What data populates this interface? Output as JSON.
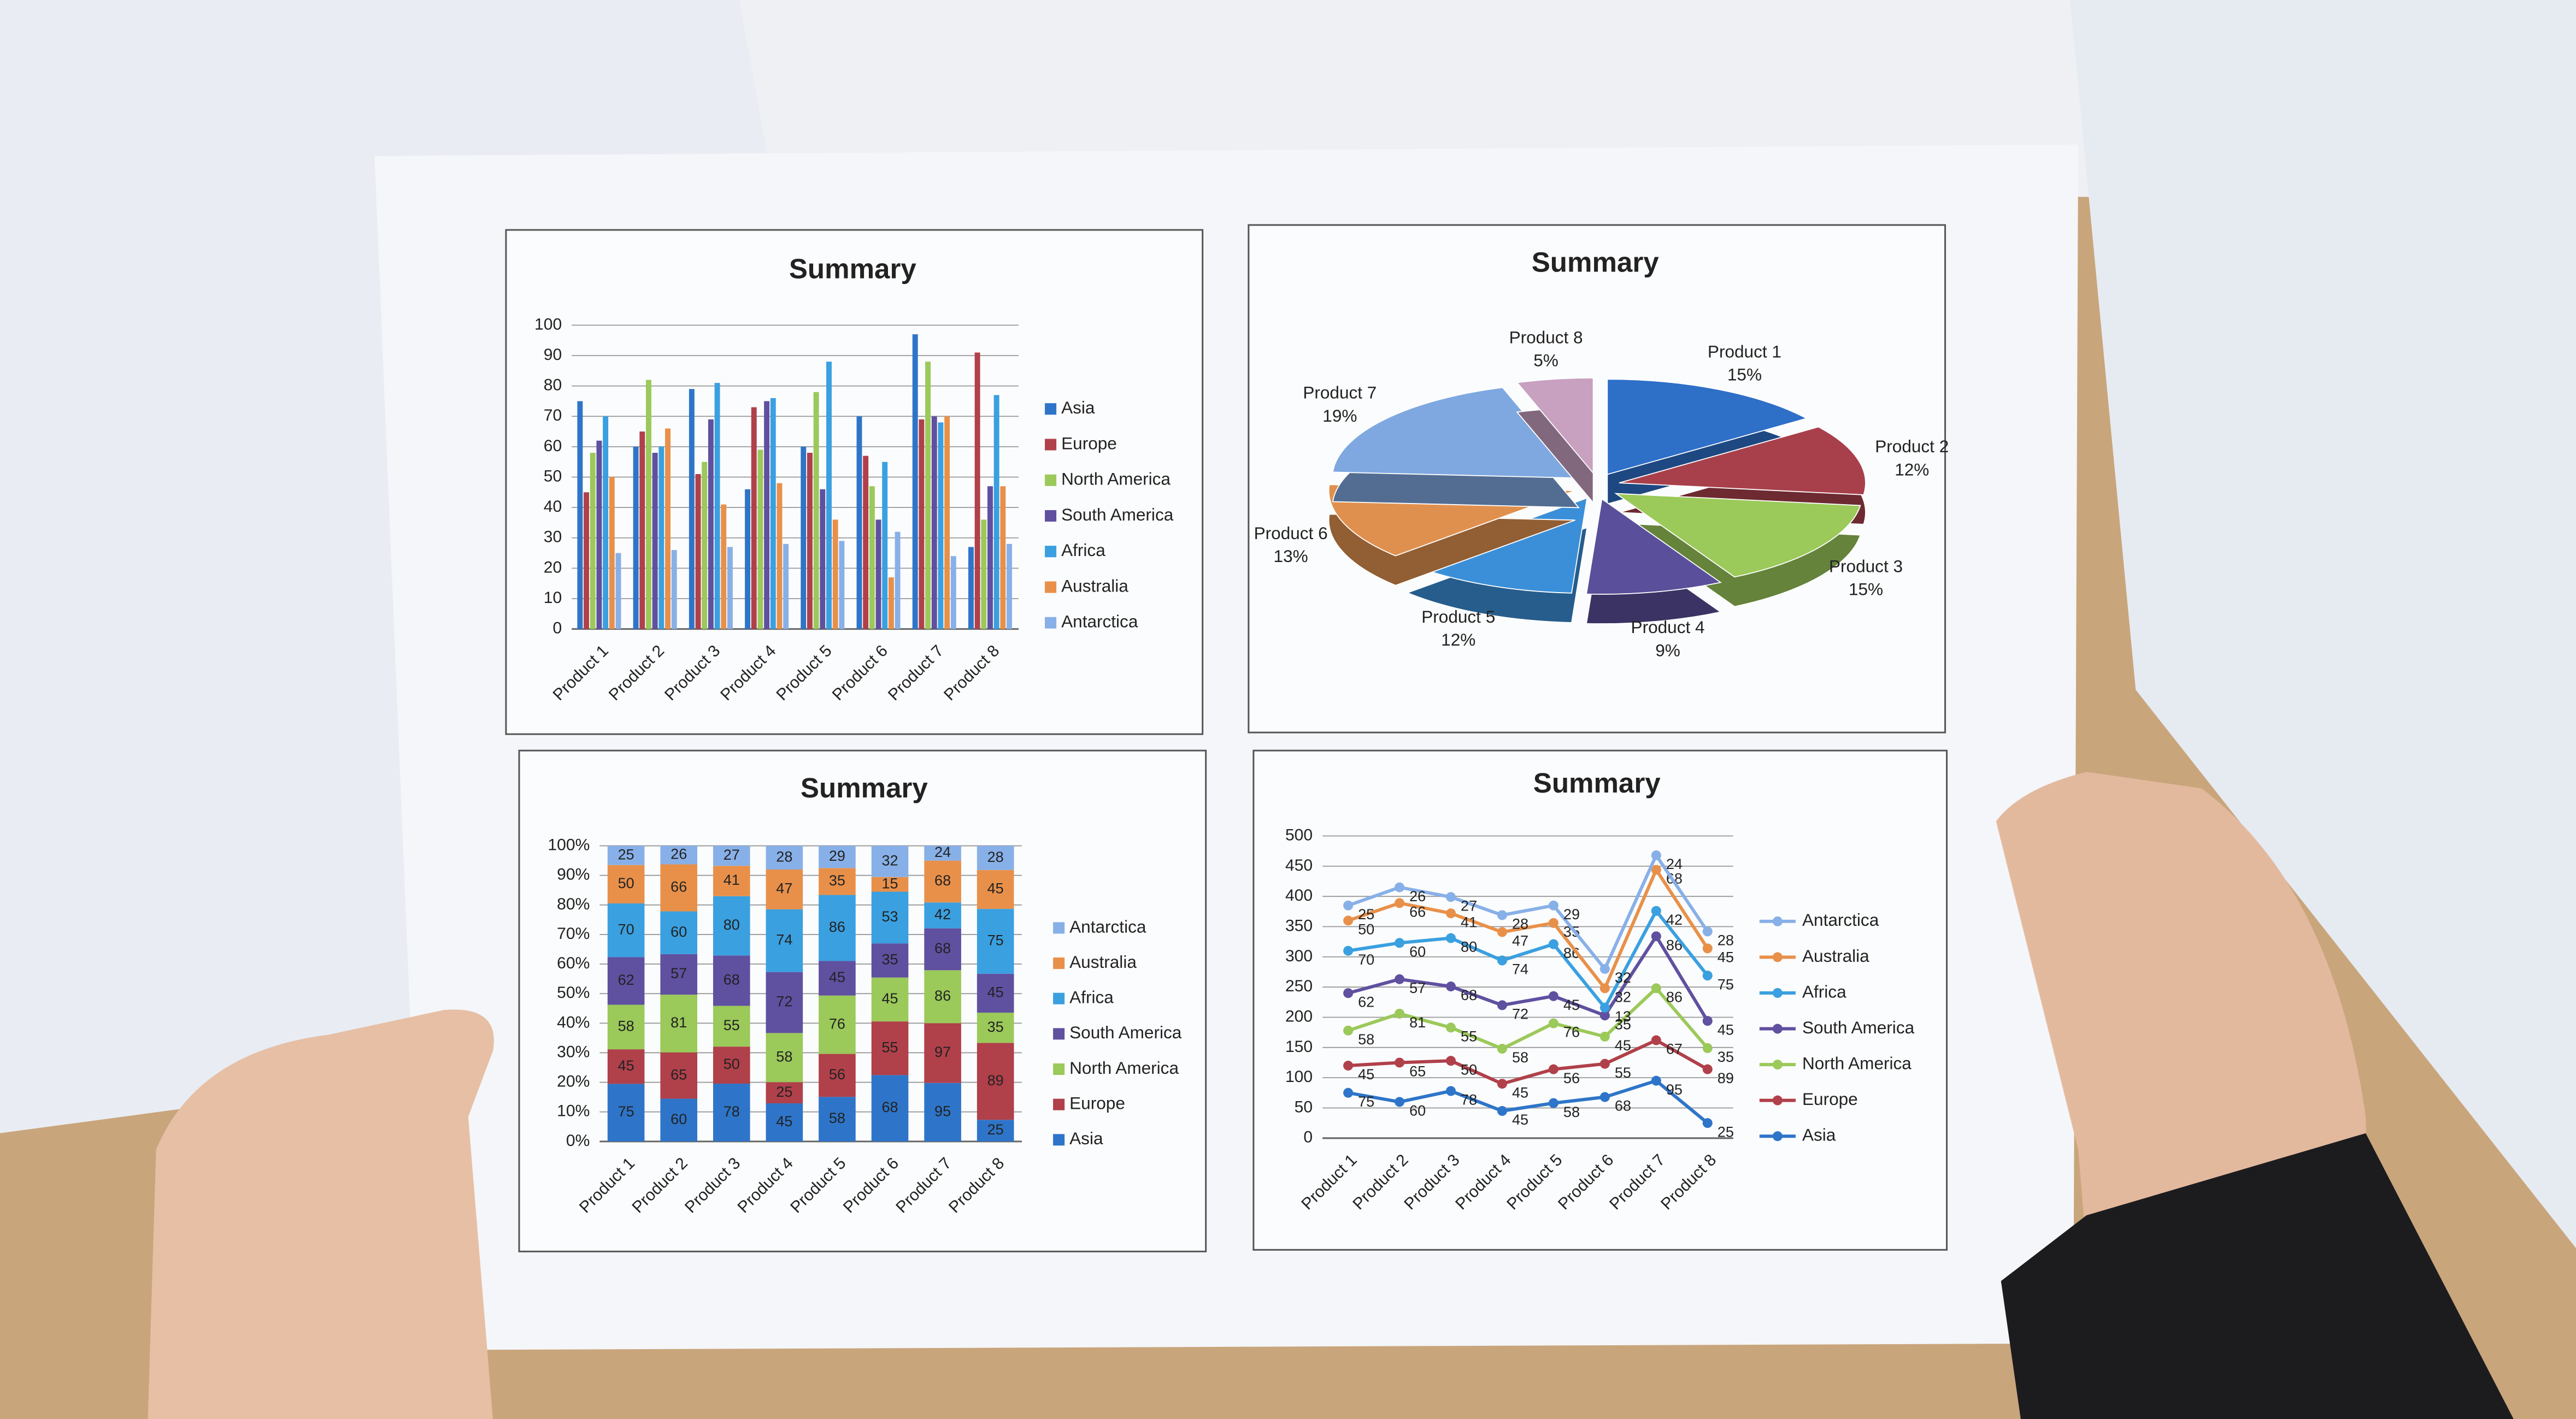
{
  "chart_data": [
    {
      "type": "bar",
      "title": "Summary",
      "categories": [
        "Product 1",
        "Product 2",
        "Product 3",
        "Product 4",
        "Product 5",
        "Product 6",
        "Product 7",
        "Product 8"
      ],
      "series": [
        {
          "name": "Asia",
          "color": "#2e75c9",
          "values": [
            75,
            60,
            79,
            46,
            60,
            70,
            97,
            27
          ]
        },
        {
          "name": "Europe",
          "color": "#b0404a",
          "values": [
            45,
            65,
            51,
            73,
            58,
            57,
            69,
            91
          ]
        },
        {
          "name": "North America",
          "color": "#9bc95a",
          "values": [
            58,
            82,
            55,
            59,
            78,
            47,
            88,
            36
          ]
        },
        {
          "name": "South America",
          "color": "#6050a0",
          "values": [
            62,
            58,
            69,
            75,
            46,
            36,
            70,
            47
          ]
        },
        {
          "name": "Africa",
          "color": "#3aa0e0",
          "values": [
            70,
            60,
            81,
            76,
            88,
            55,
            68,
            77
          ]
        },
        {
          "name": "Australia",
          "color": "#e8904a",
          "values": [
            50,
            66,
            41,
            48,
            36,
            17,
            70,
            47
          ]
        },
        {
          "name": "Antarctica",
          "color": "#88b0e8",
          "values": [
            25,
            26,
            27,
            28,
            29,
            32,
            24,
            28
          ]
        }
      ],
      "ylim": [
        0,
        100
      ],
      "yticks": [
        0,
        10,
        20,
        30,
        40,
        50,
        60,
        70,
        80,
        90,
        100
      ],
      "grid": true,
      "legend": "right"
    },
    {
      "type": "pie",
      "title": "Summary",
      "categories": [
        "Product 1",
        "Product 2",
        "Product 3",
        "Product 4",
        "Product 5",
        "Product 6",
        "Product 7",
        "Product 8"
      ],
      "values": [
        15,
        12,
        15,
        9,
        12,
        13,
        19,
        5
      ],
      "value_labels": [
        "15%",
        "12%",
        "15%",
        "9%",
        "12%",
        "13%",
        "19%",
        "5%"
      ],
      "colors": [
        "#2e6fc8",
        "#a8404c",
        "#9bc95a",
        "#5a4f9a",
        "#3a8fd8",
        "#e0904e",
        "#7fa8e0",
        "#c8a0c0"
      ]
    },
    {
      "type": "stacked_percent_bar",
      "title": "Summary",
      "categories": [
        "Product 1",
        "Product 2",
        "Product 3",
        "Product 4",
        "Product 5",
        "Product 6",
        "Product 7",
        "Product 8"
      ],
      "series": [
        {
          "name": "Asia",
          "color": "#2e75c9",
          "values": [
            75,
            60,
            78,
            45,
            58,
            68,
            95,
            25
          ]
        },
        {
          "name": "Europe",
          "color": "#b0404a",
          "values": [
            45,
            65,
            50,
            25,
            56,
            55,
            97,
            89
          ]
        },
        {
          "name": "North America",
          "color": "#9bc95a",
          "values": [
            58,
            81,
            55,
            58,
            76,
            45,
            86,
            35
          ]
        },
        {
          "name": "South America",
          "color": "#6050a0",
          "values": [
            62,
            57,
            68,
            72,
            45,
            35,
            68,
            45
          ]
        },
        {
          "name": "Africa",
          "color": "#3aa0e0",
          "values": [
            70,
            60,
            80,
            74,
            86,
            53,
            42,
            75
          ]
        },
        {
          "name": "Australia",
          "color": "#e8904a",
          "values": [
            50,
            66,
            41,
            47,
            35,
            15,
            68,
            45
          ]
        },
        {
          "name": "Antarctica",
          "color": "#88b0e8",
          "values": [
            25,
            26,
            27,
            28,
            29,
            32,
            24,
            28
          ]
        }
      ],
      "ylim": [
        0,
        100
      ],
      "yticks": [
        {
          "value": 0,
          "label": "0%"
        },
        {
          "value": 10,
          "label": "10%"
        },
        {
          "value": 20,
          "label": "20%"
        },
        {
          "value": 30,
          "label": "30%"
        },
        {
          "value": 40,
          "label": "40%"
        },
        {
          "value": 50,
          "label": "50%"
        },
        {
          "value": 60,
          "label": "60%"
        },
        {
          "value": 70,
          "label": "70%"
        },
        {
          "value": 80,
          "label": "80%"
        },
        {
          "value": 90,
          "label": "90%"
        },
        {
          "value": 100,
          "label": "100%"
        }
      ],
      "grid": true,
      "legend": "right",
      "legend_order": "reversed"
    },
    {
      "type": "stacked_line",
      "title": "Summary",
      "categories": [
        "Product 1",
        "Product 2",
        "Product 3",
        "Product 4",
        "Product 5",
        "Product 6",
        "Product 7",
        "Product 8"
      ],
      "series": [
        {
          "name": "Asia",
          "color": "#2e75c9",
          "values": [
            75,
            60,
            78,
            45,
            58,
            68,
            95,
            25
          ]
        },
        {
          "name": "Europe",
          "color": "#b0404a",
          "values": [
            45,
            65,
            50,
            45,
            56,
            55,
            67,
            89
          ]
        },
        {
          "name": "North America",
          "color": "#9bc95a",
          "values": [
            58,
            81,
            55,
            58,
            76,
            45,
            86,
            35
          ]
        },
        {
          "name": "South America",
          "color": "#6050a0",
          "values": [
            62,
            57,
            68,
            72,
            45,
            35,
            86,
            45
          ]
        },
        {
          "name": "Africa",
          "color": "#3aa0e0",
          "values": [
            70,
            60,
            80,
            74,
            86,
            13,
            42,
            75
          ]
        },
        {
          "name": "Australia",
          "color": "#e8904a",
          "values": [
            50,
            66,
            41,
            47,
            35,
            32,
            68,
            45
          ]
        },
        {
          "name": "Antarctica",
          "color": "#88b0e8",
          "values": [
            25,
            26,
            27,
            28,
            29,
            32,
            24,
            28
          ]
        }
      ],
      "ylim": [
        0,
        500
      ],
      "yticks": [
        0,
        50,
        100,
        150,
        200,
        250,
        300,
        350,
        400,
        450,
        500
      ],
      "grid": true,
      "legend": "right",
      "legend_order": "reversed"
    }
  ]
}
